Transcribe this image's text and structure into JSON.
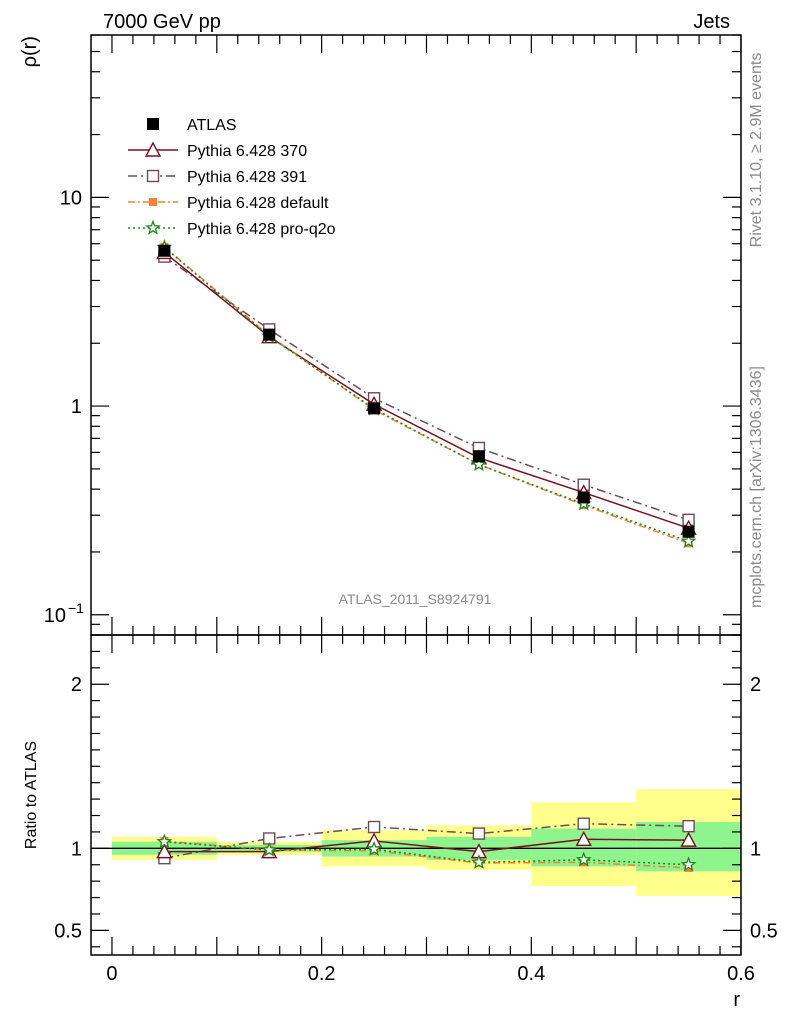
{
  "header": {
    "left": "7000 GeV pp",
    "right": "Jets"
  },
  "side_text": {
    "top": "Rivet 3.1.10, ≥ 2.9M events",
    "bottom": "mcplots.cern.ch [arXiv:1306.3436]"
  },
  "analysis_label": "ATLAS_2011_S8924791",
  "colors": {
    "atlas": "#000000",
    "p370": "#7b1020",
    "p391": "#6e4a5a",
    "pdefault": "#f58232",
    "pq2o": "#1a8a1a",
    "band_stat": "#8ef58e",
    "band_total": "#ffff8c"
  },
  "chart_data": [
    {
      "type": "line",
      "yscale": "log",
      "ylabel": "ρ(r)",
      "xlim": [
        -0.02,
        0.6
      ],
      "ylim": [
        0.08,
        60
      ],
      "y_ticks": [
        {
          "value": 0.1,
          "label": "10",
          "exp": "−1"
        },
        {
          "value": 1,
          "label": "1",
          "exp": ""
        },
        {
          "value": 10,
          "label": "10",
          "exp": ""
        }
      ],
      "legend_position": "top-left",
      "x": [
        0.05,
        0.15,
        0.25,
        0.35,
        0.45,
        0.55
      ],
      "series": [
        {
          "name": "ATLAS",
          "marker": "filled-square",
          "values": [
            5.55,
            2.2,
            0.975,
            0.575,
            0.365,
            0.25
          ]
        },
        {
          "name": "Pythia 6.428 370",
          "marker": "open-triangle",
          "line": "solid",
          "values": [
            5.45,
            2.15,
            1.02,
            0.565,
            0.385,
            0.26
          ]
        },
        {
          "name": "Pythia 6.428 391",
          "marker": "open-square",
          "line": "dashdot",
          "values": [
            5.2,
            2.33,
            1.09,
            0.63,
            0.42,
            0.285
          ]
        },
        {
          "name": "Pythia 6.428 default",
          "marker": "filled-small-square",
          "line": "dashdot",
          "values": [
            5.8,
            2.18,
            0.96,
            0.525,
            0.335,
            0.22
          ]
        },
        {
          "name": "Pythia 6.428 pro-q2o",
          "marker": "star",
          "line": "dotted",
          "values": [
            5.75,
            2.16,
            0.97,
            0.525,
            0.34,
            0.225
          ]
        }
      ]
    },
    {
      "type": "line",
      "ylabel": "Ratio to ATLAS",
      "xlabel": "r",
      "xlim": [
        -0.02,
        0.6
      ],
      "ylim": [
        0.35,
        2.3
      ],
      "x_ticks": [
        {
          "value": 0,
          "label": "0"
        },
        {
          "value": 0.2,
          "label": "0.2"
        },
        {
          "value": 0.4,
          "label": "0.4"
        },
        {
          "value": 0.6,
          "label": "0.6"
        }
      ],
      "y_ticks": [
        {
          "value": 0.5,
          "label": "0.5"
        },
        {
          "value": 1,
          "label": "1"
        },
        {
          "value": 2,
          "label": "2"
        }
      ],
      "bins": [
        {
          "x0": 0.0,
          "x1": 0.1,
          "stat": [
            0.96,
            1.04
          ],
          "total": [
            0.93,
            1.07
          ]
        },
        {
          "x0": 0.1,
          "x1": 0.2,
          "stat": [
            0.98,
            1.02
          ],
          "total": [
            0.96,
            1.04
          ]
        },
        {
          "x0": 0.2,
          "x1": 0.3,
          "stat": [
            0.95,
            1.05
          ],
          "total": [
            0.89,
            1.11
          ]
        },
        {
          "x0": 0.3,
          "x1": 0.4,
          "stat": [
            0.93,
            1.07
          ],
          "total": [
            0.87,
            1.14
          ]
        },
        {
          "x0": 0.4,
          "x1": 0.5,
          "stat": [
            0.89,
            1.12
          ],
          "total": [
            0.77,
            1.28
          ]
        },
        {
          "x0": 0.5,
          "x1": 0.6,
          "stat": [
            0.86,
            1.16
          ],
          "total": [
            0.71,
            1.36
          ]
        }
      ],
      "x": [
        0.05,
        0.15,
        0.25,
        0.35,
        0.45,
        0.55
      ],
      "series": [
        {
          "name": "Pythia 6.428 370",
          "values": [
            0.98,
            0.98,
            1.045,
            0.98,
            1.055,
            1.05
          ]
        },
        {
          "name": "Pythia 6.428 391",
          "values": [
            0.94,
            1.06,
            1.13,
            1.09,
            1.15,
            1.135
          ]
        },
        {
          "name": "Pythia 6.428 default",
          "values": [
            1.045,
            0.99,
            0.985,
            0.91,
            0.915,
            0.88
          ]
        },
        {
          "name": "Pythia 6.428 pro-q2o",
          "values": [
            1.04,
            0.99,
            0.995,
            0.915,
            0.93,
            0.9
          ]
        }
      ]
    }
  ]
}
